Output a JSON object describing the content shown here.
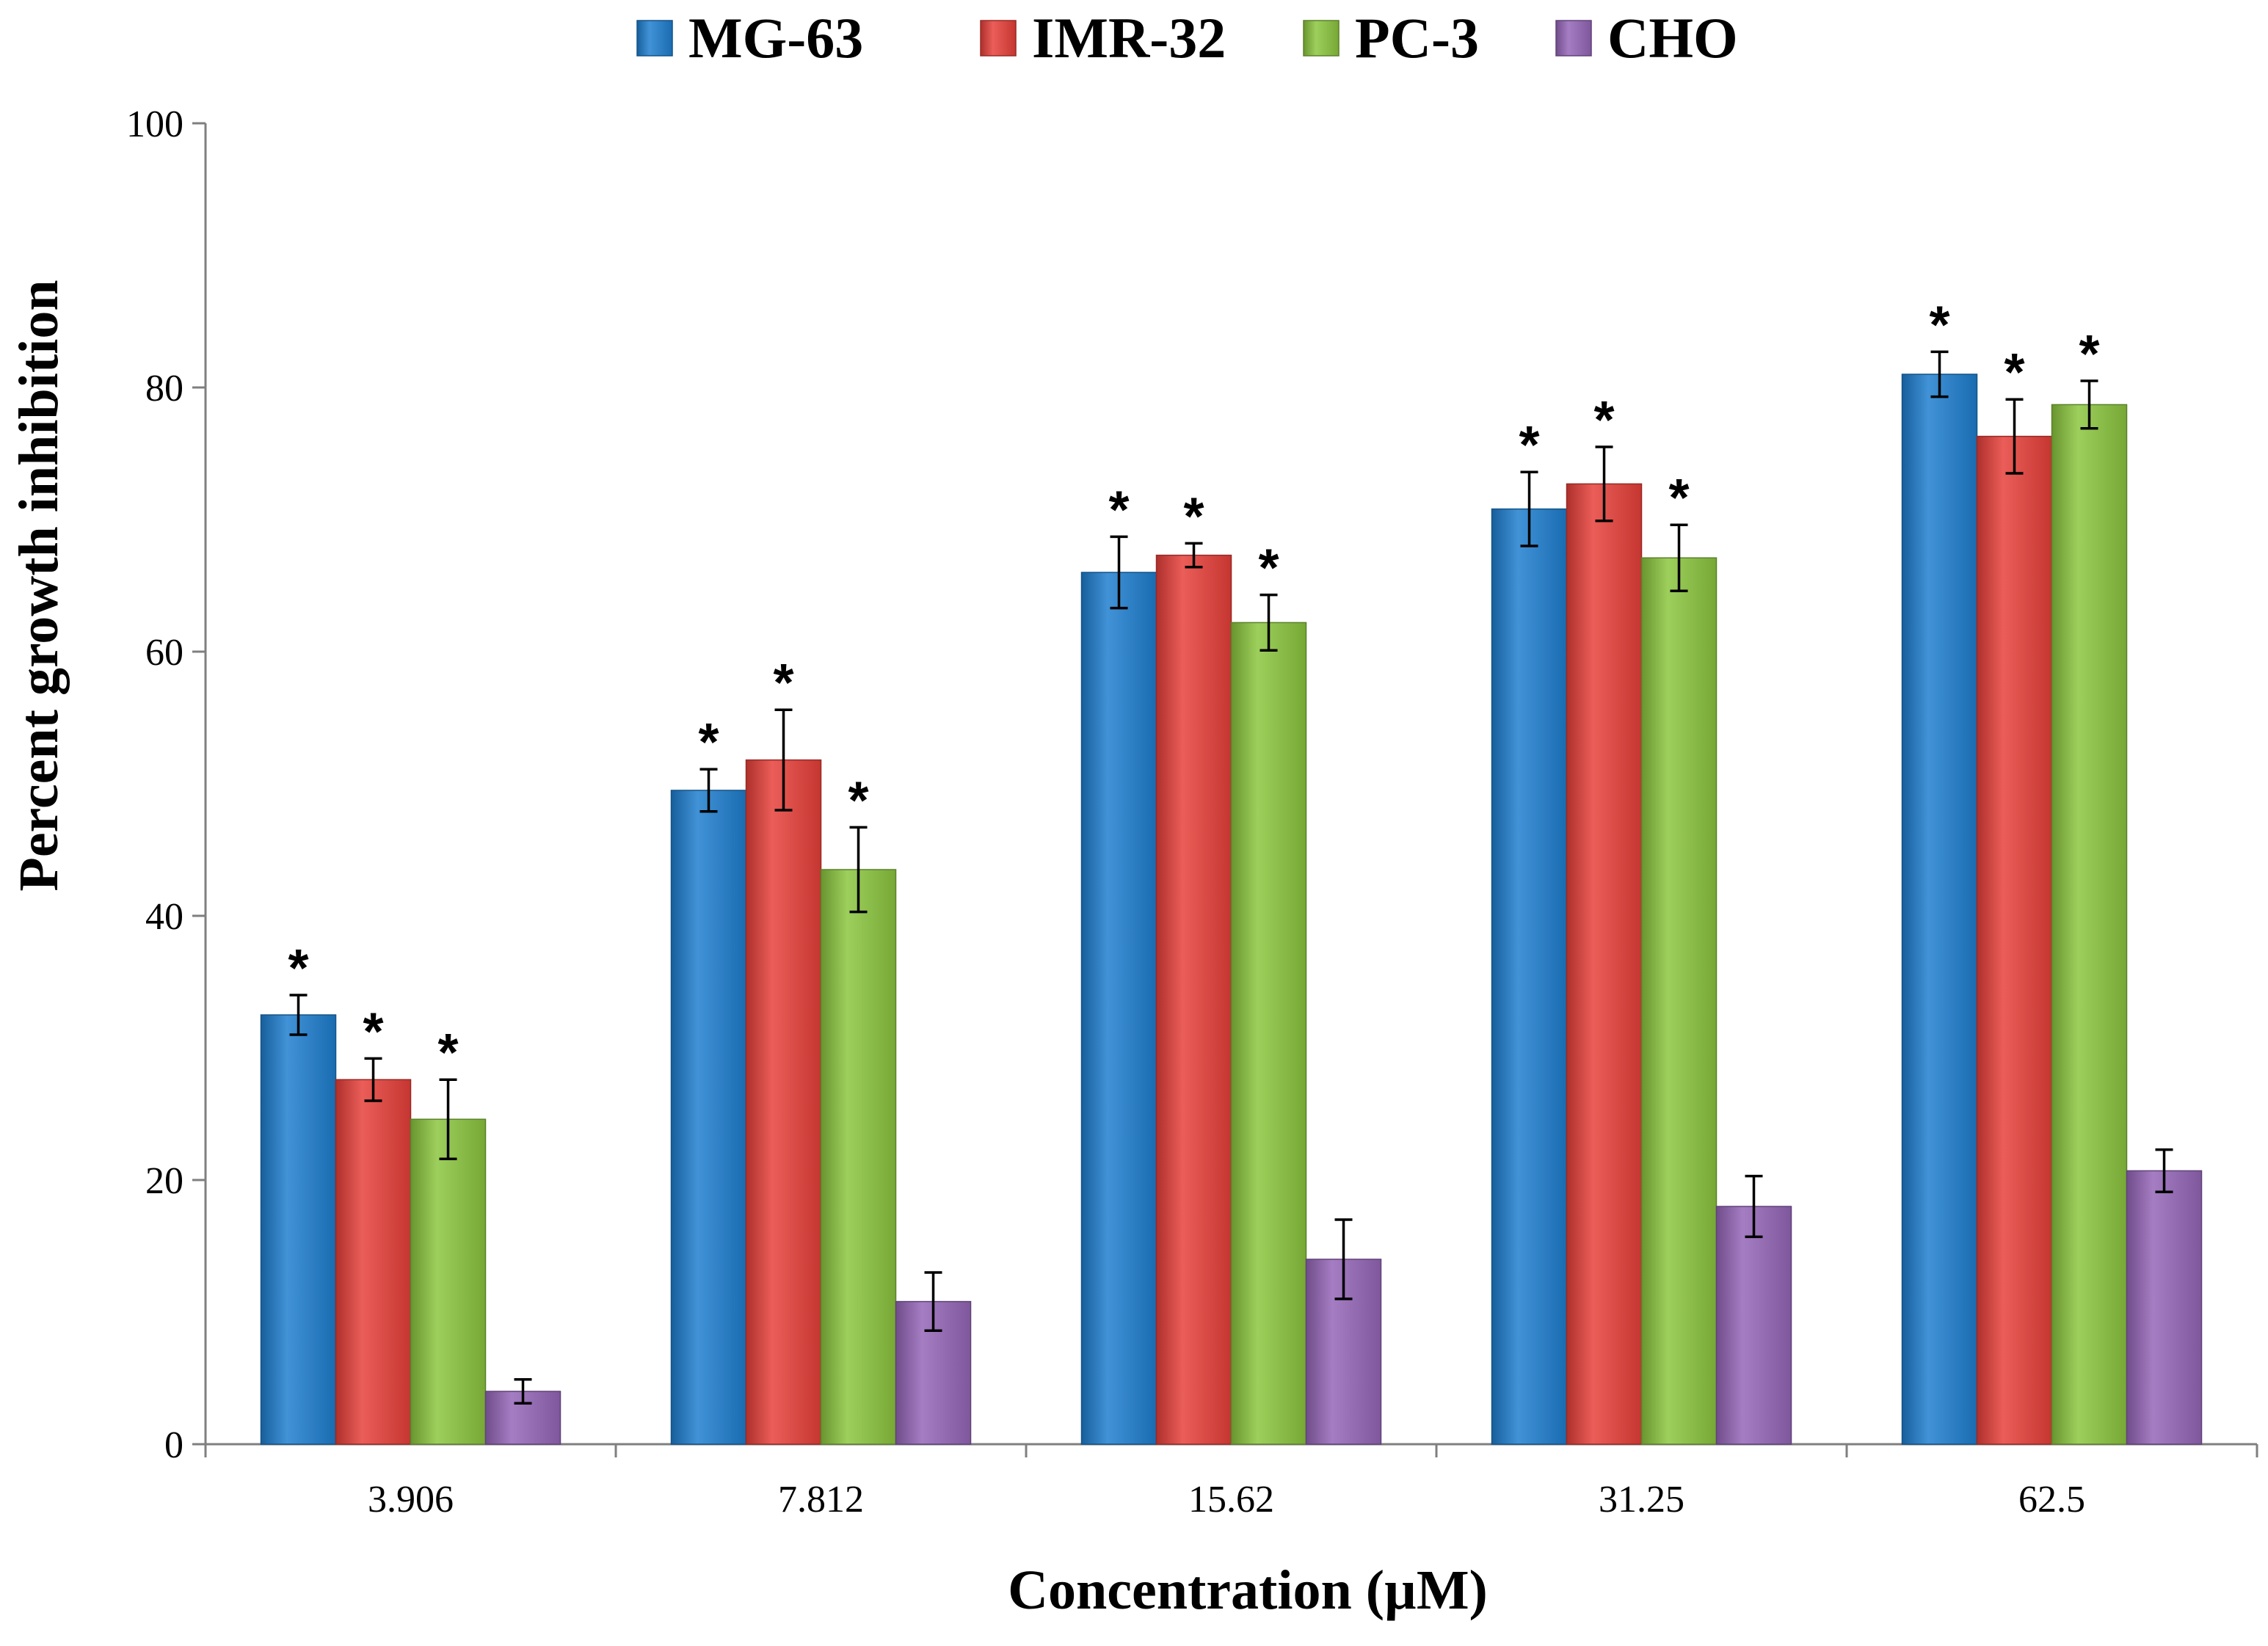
{
  "chart_data": {
    "type": "bar",
    "title": "",
    "xlabel": "Concentration (µM)",
    "ylabel": "Percent growth inhibition",
    "ylim": [
      0,
      100
    ],
    "yticks": [
      "0",
      "20",
      "40",
      "60",
      "80",
      "100"
    ],
    "grid": false,
    "legend_position": "top-center",
    "categories": [
      "3.906",
      "7.812",
      "15.62",
      "31.25",
      "62.5"
    ],
    "significance_marker": "*",
    "series": [
      {
        "name": "MG-63",
        "color": "#1f7fd0",
        "values": [
          32.5,
          49.5,
          66.0,
          70.8,
          81.0
        ],
        "errors": [
          1.5,
          1.6,
          2.7,
          2.8,
          1.7
        ],
        "significant": [
          true,
          true,
          true,
          true,
          true
        ]
      },
      {
        "name": "IMR-32",
        "color": "#e8403a",
        "values": [
          27.6,
          51.8,
          67.3,
          72.7,
          76.3
        ],
        "errors": [
          1.6,
          3.8,
          0.9,
          2.8,
          2.8
        ],
        "significant": [
          true,
          true,
          true,
          true,
          true
        ]
      },
      {
        "name": "PC-3",
        "color": "#8cc63f",
        "values": [
          24.6,
          43.5,
          62.2,
          67.1,
          78.7
        ],
        "errors": [
          3.0,
          3.2,
          2.1,
          2.5,
          1.8
        ],
        "significant": [
          true,
          true,
          true,
          true,
          true
        ]
      },
      {
        "name": "CHO",
        "color": "#9566b8",
        "values": [
          4.0,
          10.8,
          14.0,
          18.0,
          20.7
        ],
        "errors": [
          0.9,
          2.2,
          3.0,
          2.3,
          1.6
        ],
        "significant": [
          false,
          false,
          false,
          false,
          false
        ]
      }
    ]
  }
}
